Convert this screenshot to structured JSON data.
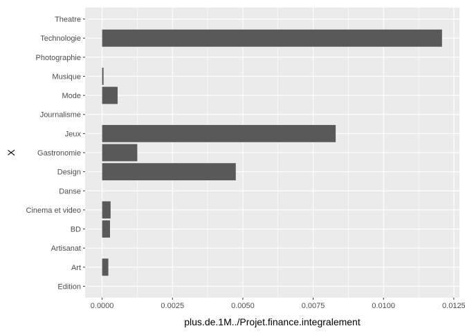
{
  "chart_data": {
    "type": "bar",
    "orientation": "horizontal",
    "categories": [
      "Edition",
      "Art",
      "Artisanat",
      "BD",
      "Cinema et video",
      "Danse",
      "Design",
      "Gastronomie",
      "Jeux",
      "Journalisme",
      "Mode",
      "Musique",
      "Photographie",
      "Technologie",
      "Theatre"
    ],
    "values": [
      0.0,
      0.00022,
      0.0,
      0.00028,
      0.0003,
      0.0,
      0.00475,
      0.00125,
      0.0083,
      0.0,
      0.00055,
      5e-05,
      0.0,
      0.01208,
      0.0
    ],
    "x_ticks": [
      "0.0000",
      "0.0025",
      "0.0050",
      "0.0075",
      "0.0100",
      "0.0125"
    ],
    "x_tick_values": [
      0,
      0.0025,
      0.005,
      0.0075,
      0.01,
      0.0125
    ],
    "xlabel": "plus.de.1M../Projet.finance.integralement",
    "ylabel": "X",
    "xlim": [
      -0.000605,
      0.0127
    ],
    "grid": true,
    "legend": "none",
    "colors": {
      "bar": "#595959",
      "panel": "#ebebeb",
      "grid_major": "#ffffff",
      "tick": "#333333",
      "tick_text": "#4d4d4d"
    }
  }
}
